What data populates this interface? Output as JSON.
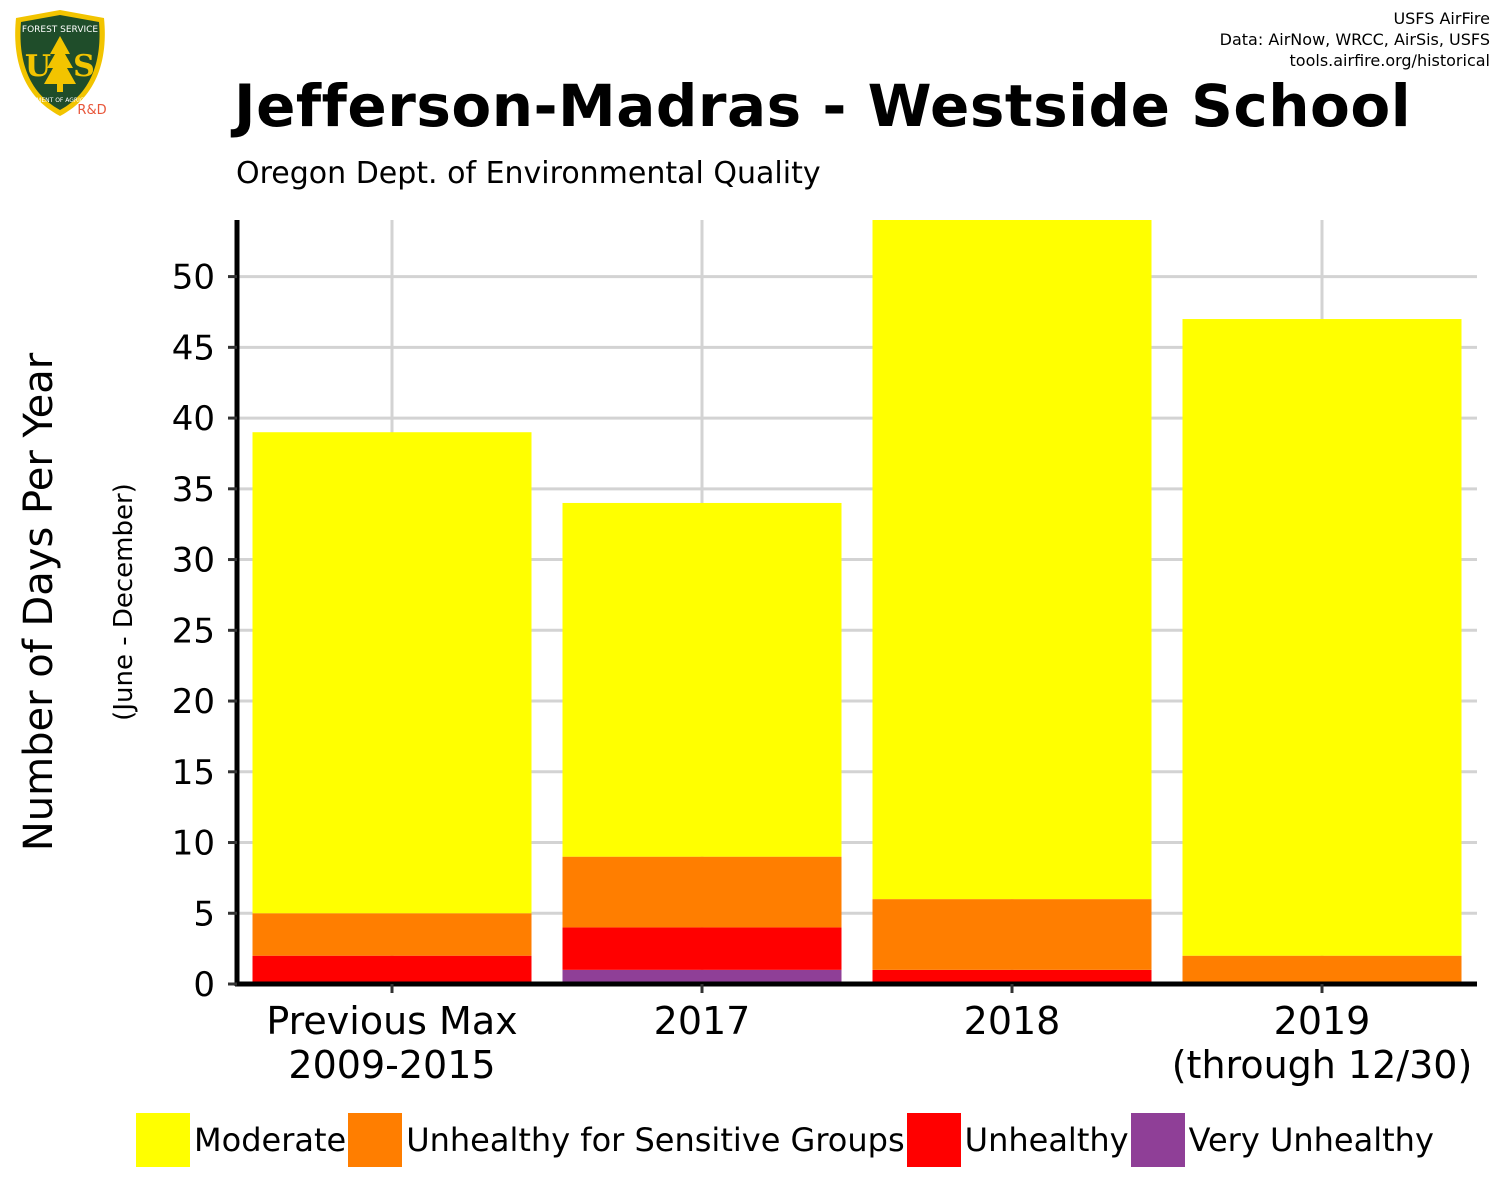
{
  "header": {
    "credits": [
      "USFS AirFire",
      "Data: AirNow, WRCC, AirSis, USFS",
      "tools.airfire.org/historical"
    ],
    "logo": {
      "top_text": "FOREST SERVICE",
      "letters": "US",
      "bottom_text": "DEPARTMENT OF AGRICULTURE",
      "tag": "R&D"
    }
  },
  "chart_data": {
    "type": "bar",
    "stacked": true,
    "title": "Jefferson-Madras - Westside School",
    "subtitle": "Oregon Dept. of Environmental Quality",
    "ylabel": "Number of Days Per Year",
    "ylabel_sub": "(June - December)",
    "xlabel": "",
    "ylim": [
      0,
      54
    ],
    "yticks": [
      0,
      5,
      10,
      15,
      20,
      25,
      30,
      35,
      40,
      45,
      50
    ],
    "grid": true,
    "legend_position": "bottom",
    "categories": [
      "Previous Max\n2009-2015",
      "2017",
      "2018",
      "2019\n(through 12/30)"
    ],
    "series": [
      {
        "name": "Very Unhealthy",
        "color": "#8F3F97",
        "values": [
          0,
          1,
          0,
          0
        ]
      },
      {
        "name": "Unhealthy",
        "color": "#FF0000",
        "values": [
          2,
          3,
          1,
          0
        ]
      },
      {
        "name": "Unhealthy for Sensitive Groups",
        "color": "#FF7E00",
        "values": [
          3,
          5,
          5,
          2
        ]
      },
      {
        "name": "Moderate",
        "color": "#FFFF00",
        "values": [
          34,
          25,
          48,
          45
        ]
      }
    ],
    "legend_order": [
      "Moderate",
      "Unhealthy for Sensitive Groups",
      "Unhealthy",
      "Very Unhealthy"
    ]
  }
}
